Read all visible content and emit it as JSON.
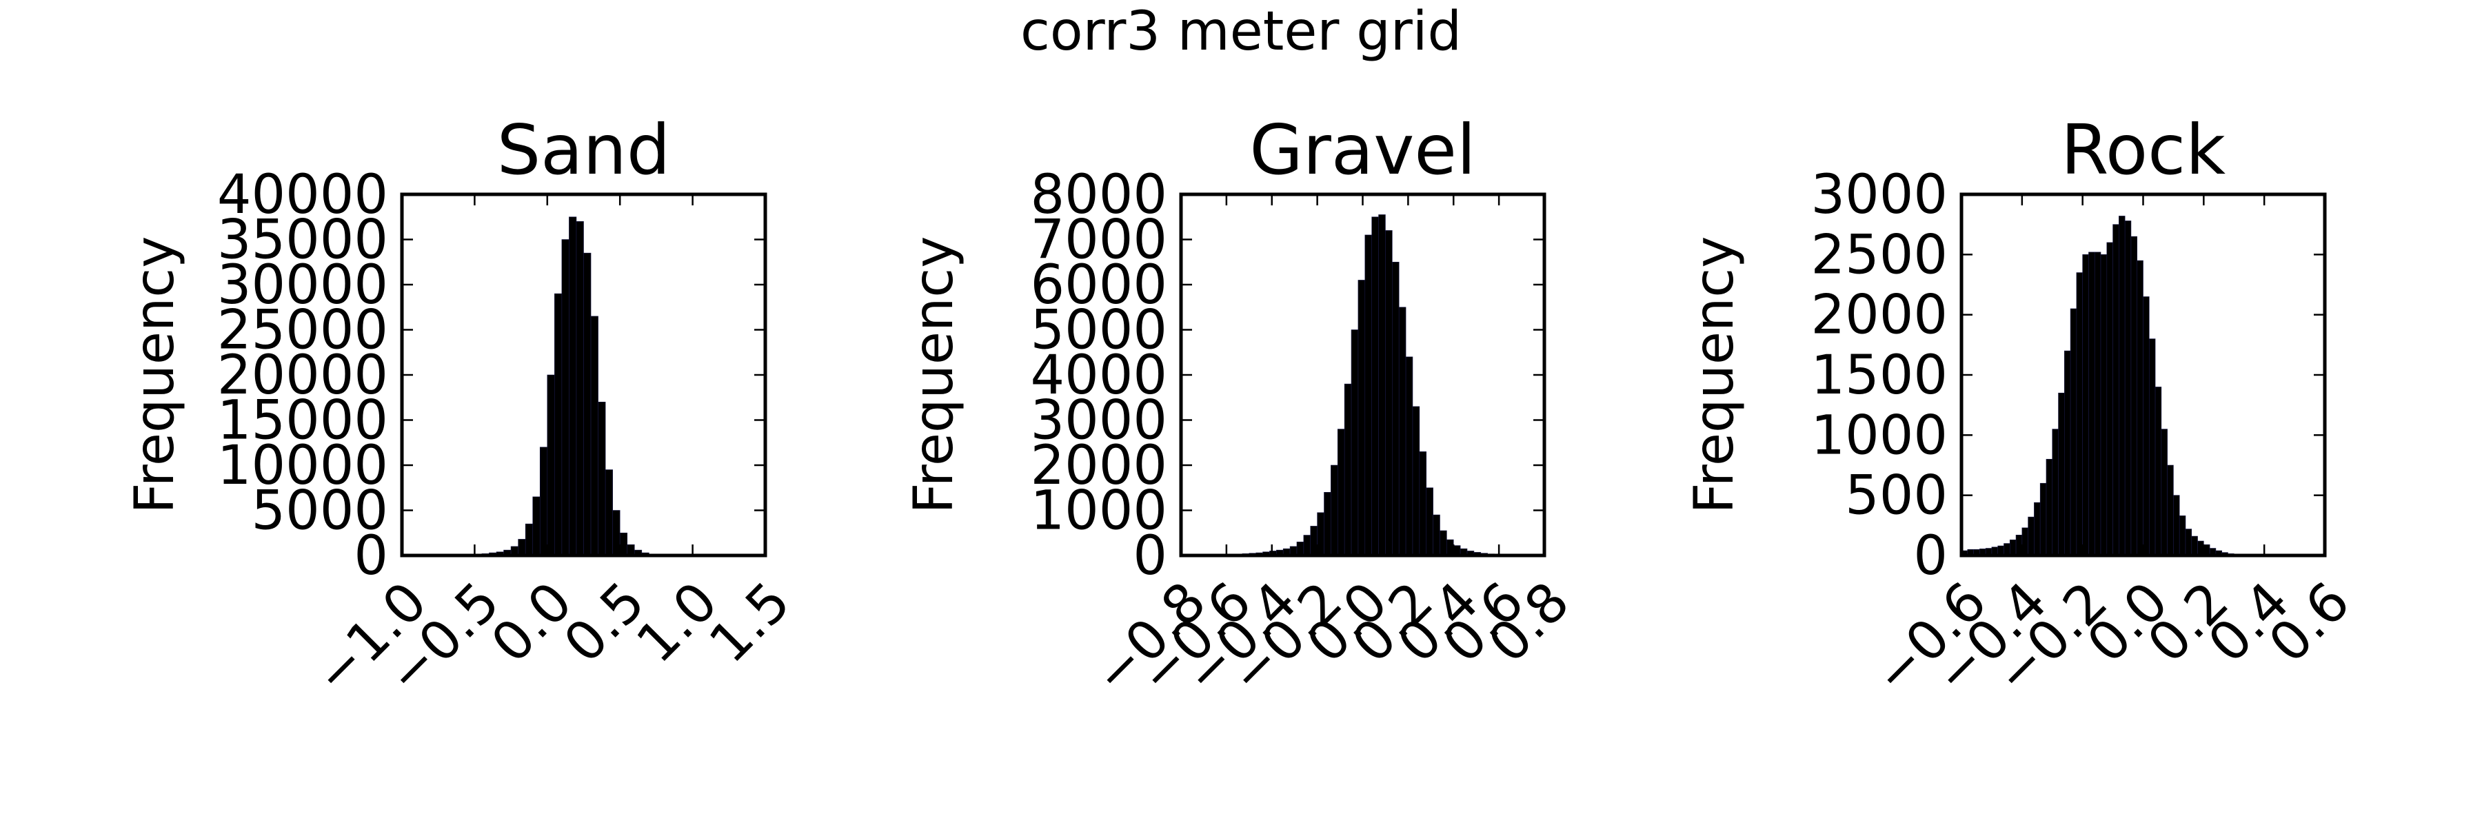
{
  "figure": {
    "suptitle": "corr3 meter grid"
  },
  "style": {
    "bar_fill": "#000000",
    "bar_edge": "#1a1a4a",
    "axes_color": "#000000",
    "background": "#ffffff"
  },
  "chart_data": [
    {
      "type": "bar",
      "title": "Sand",
      "xlabel": "",
      "ylabel": "Frequency",
      "xlim": [
        -1.0,
        1.5
      ],
      "ylim": [
        0,
        40000
      ],
      "xticks": [
        -1.0,
        -0.5,
        0.0,
        0.5,
        1.0,
        1.5
      ],
      "xtick_labels": [
        "−1.0",
        "−0.5",
        "0.0",
        "0.5",
        "1.0",
        "1.5"
      ],
      "yticks": [
        0,
        5000,
        10000,
        15000,
        20000,
        25000,
        30000,
        35000,
        40000
      ],
      "ytick_labels": [
        "0",
        "5000",
        "10000",
        "15000",
        "20000",
        "25000",
        "30000",
        "35000",
        "40000"
      ],
      "grid": false,
      "bins": {
        "x0": -0.6,
        "x1": 0.8,
        "counts": [
          0,
          100,
          150,
          200,
          300,
          400,
          600,
          1000,
          1800,
          3500,
          6500,
          12000,
          20000,
          29000,
          35000,
          37500,
          37000,
          33500,
          26500,
          17000,
          9500,
          5000,
          2500,
          1200,
          600,
          300,
          150,
          100
        ]
      }
    },
    {
      "type": "bar",
      "title": "Gravel",
      "xlabel": "",
      "ylabel": "Frequency",
      "xlim": [
        -0.8,
        0.8
      ],
      "ylim": [
        0,
        8000
      ],
      "xticks": [
        -0.8,
        -0.6,
        -0.4,
        -0.2,
        0.0,
        0.2,
        0.4,
        0.6,
        0.8
      ],
      "xtick_labels": [
        "−0.8",
        "−0.6",
        "−0.4",
        "−0.2",
        "0.0",
        "0.2",
        "0.4",
        "0.6",
        "0.8"
      ],
      "yticks": [
        0,
        1000,
        2000,
        3000,
        4000,
        5000,
        6000,
        7000,
        8000
      ],
      "ytick_labels": [
        "0",
        "1000",
        "2000",
        "3000",
        "4000",
        "5000",
        "6000",
        "7000",
        "8000"
      ],
      "grid": false,
      "bins": {
        "x0": -0.62,
        "x1": 0.7,
        "counts": [
          10,
          20,
          30,
          40,
          50,
          60,
          80,
          100,
          120,
          150,
          200,
          300,
          450,
          650,
          950,
          1400,
          2000,
          2800,
          3800,
          5000,
          6100,
          7100,
          7500,
          7550,
          7200,
          6500,
          5500,
          4400,
          3300,
          2300,
          1500,
          900,
          550,
          350,
          220,
          150,
          100,
          70,
          50,
          35,
          25,
          15,
          10,
          5
        ]
      }
    },
    {
      "type": "bar",
      "title": "Rock",
      "xlabel": "",
      "ylabel": "Frequency",
      "xlim": [
        -0.6,
        0.6
      ],
      "ylim": [
        0,
        3000
      ],
      "xticks": [
        -0.6,
        -0.4,
        -0.2,
        0.0,
        0.2,
        0.4,
        0.6
      ],
      "xtick_labels": [
        "−0.6",
        "−0.4",
        "−0.2",
        "0.0",
        "0.2",
        "0.4",
        "0.6"
      ],
      "yticks": [
        0,
        500,
        1000,
        1500,
        2000,
        2500,
        3000
      ],
      "ytick_labels": [
        "0",
        "500",
        "1000",
        "1500",
        "2000",
        "2500",
        "3000"
      ],
      "grid": false,
      "bins": {
        "x0": -0.6,
        "x1": 0.44,
        "counts": [
          40,
          50,
          50,
          55,
          60,
          70,
          80,
          100,
          130,
          170,
          230,
          320,
          440,
          600,
          800,
          1050,
          1350,
          1700,
          2050,
          2350,
          2500,
          2520,
          2520,
          2500,
          2600,
          2750,
          2820,
          2780,
          2650,
          2450,
          2150,
          1800,
          1400,
          1050,
          750,
          500,
          330,
          220,
          160,
          120,
          90,
          60,
          40,
          25,
          15,
          10,
          5,
          3,
          2,
          1,
          1,
          1
        ]
      }
    }
  ]
}
